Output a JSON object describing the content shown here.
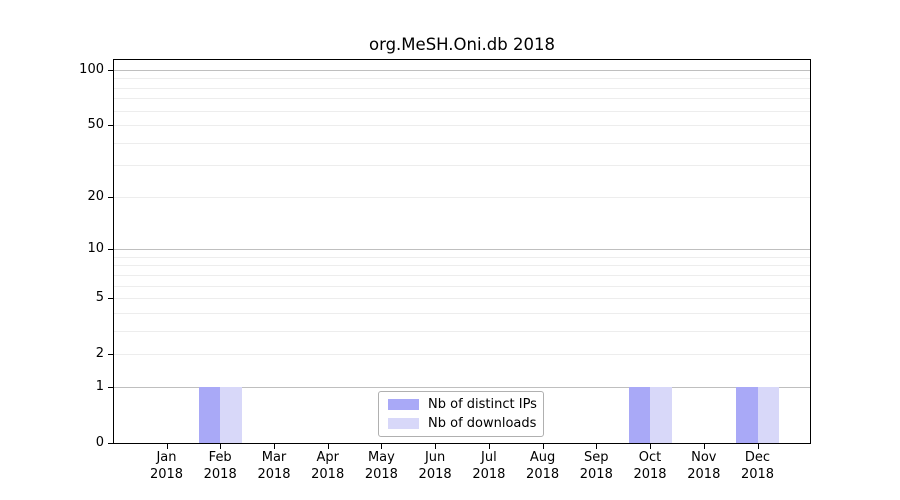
{
  "chart_data": {
    "type": "bar",
    "title": "org.MeSH.Oni.db 2018",
    "categories": [
      "Jan",
      "Feb",
      "Mar",
      "Apr",
      "May",
      "Jun",
      "Jul",
      "Aug",
      "Sep",
      "Oct",
      "Nov",
      "Dec"
    ],
    "category_year": "2018",
    "series": [
      {
        "name": "Nb of distinct IPs",
        "color": "#a9a9f7",
        "values": [
          0,
          1,
          0,
          0,
          0,
          0,
          0,
          0,
          0,
          1,
          0,
          1
        ]
      },
      {
        "name": "Nb of downloads",
        "color": "#d8d8f9",
        "values": [
          0,
          1,
          0,
          0,
          0,
          0,
          0,
          0,
          0,
          1,
          0,
          1
        ]
      }
    ],
    "yscale": "log1p",
    "ylim": [
      0,
      113
    ],
    "yticks": [
      0,
      1,
      2,
      5,
      10,
      20,
      50,
      100
    ],
    "major_gridlines": [
      1,
      10,
      100
    ],
    "minor_gridlines": [
      3,
      4,
      6,
      7,
      8,
      9,
      30,
      40,
      60,
      70,
      80,
      90
    ],
    "grid": true,
    "legend_position": "lower center",
    "colors": {
      "major_grid": "#bfbfbf",
      "minor_grid": "#ededed",
      "axis": "#000000",
      "background": "#ffffff"
    }
  }
}
